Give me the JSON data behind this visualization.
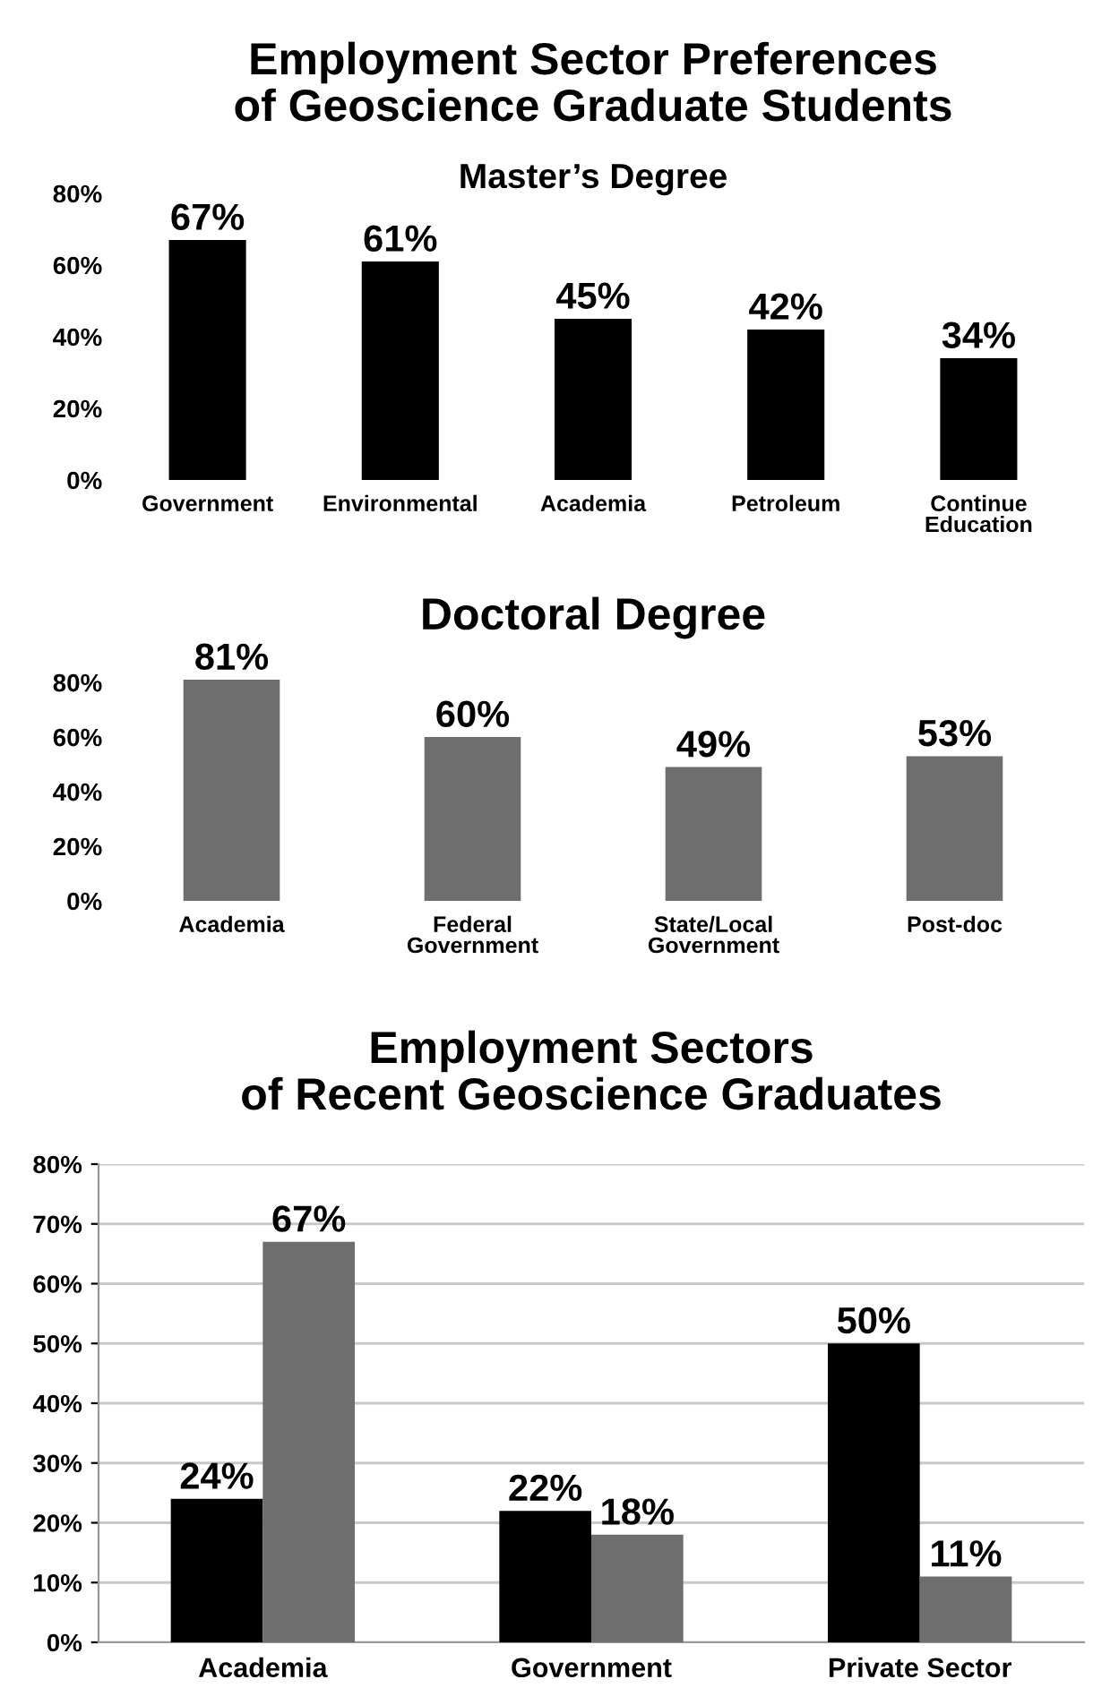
{
  "chart_data": [
    {
      "type": "bar",
      "title": "Employment Sector Preferences\nof Geoscience Graduate Students",
      "subtitle": "Master’s Degree",
      "categories": [
        "Government",
        "Environmental",
        "Academia",
        "Petroleum",
        "Continue\nEducation"
      ],
      "values": [
        67,
        61,
        45,
        42,
        34
      ],
      "color": "#000000",
      "value_labels": [
        "67%",
        "61%",
        "45%",
        "42%",
        "34%"
      ],
      "ylim": [
        0,
        80
      ],
      "yticks": [
        {
          "value": 0,
          "label": "0%"
        },
        {
          "value": 20,
          "label": "20%"
        },
        {
          "value": 40,
          "label": "40%"
        },
        {
          "value": 60,
          "label": "60%"
        },
        {
          "value": 80,
          "label": "80%"
        }
      ],
      "grid": false,
      "legend": false
    },
    {
      "type": "bar",
      "title": "Doctoral Degree",
      "categories": [
        "Academia",
        "Federal\nGovernment",
        "State/Local\nGovernment",
        "Post-doc"
      ],
      "values": [
        81,
        60,
        49,
        53
      ],
      "color": "#6e6e6e",
      "value_labels": [
        "81%",
        "60%",
        "49%",
        "53%"
      ],
      "ylim": [
        0,
        82
      ],
      "yticks": [
        {
          "value": 0,
          "label": "0%"
        },
        {
          "value": 20,
          "label": "20%"
        },
        {
          "value": 40,
          "label": "40%"
        },
        {
          "value": 60,
          "label": "60%"
        },
        {
          "value": 80,
          "label": "80%"
        }
      ],
      "grid": false,
      "legend": false
    },
    {
      "type": "bar",
      "title": "Employment Sectors\nof Recent Geoscience Graduates",
      "categories": [
        "Academia",
        "Government",
        "Private Sector"
      ],
      "series": [
        {
          "color": "#000000",
          "values": [
            24,
            22,
            50
          ],
          "value_labels": [
            "24%",
            "22%",
            "50%"
          ]
        },
        {
          "color": "#6e6e6e",
          "values": [
            67,
            18,
            11
          ],
          "value_labels": [
            "67%",
            "18%",
            "11%"
          ]
        }
      ],
      "ylim": [
        0,
        80
      ],
      "yticks": [
        {
          "value": 0,
          "label": "0%"
        },
        {
          "value": 10,
          "label": "10%"
        },
        {
          "value": 20,
          "label": "20%"
        },
        {
          "value": 30,
          "label": "30%"
        },
        {
          "value": 40,
          "label": "40%"
        },
        {
          "value": 50,
          "label": "50%"
        },
        {
          "value": 60,
          "label": "60%"
        },
        {
          "value": 70,
          "label": "70%"
        },
        {
          "value": 80,
          "label": "80%"
        }
      ],
      "grid": "y",
      "legend": false
    }
  ]
}
